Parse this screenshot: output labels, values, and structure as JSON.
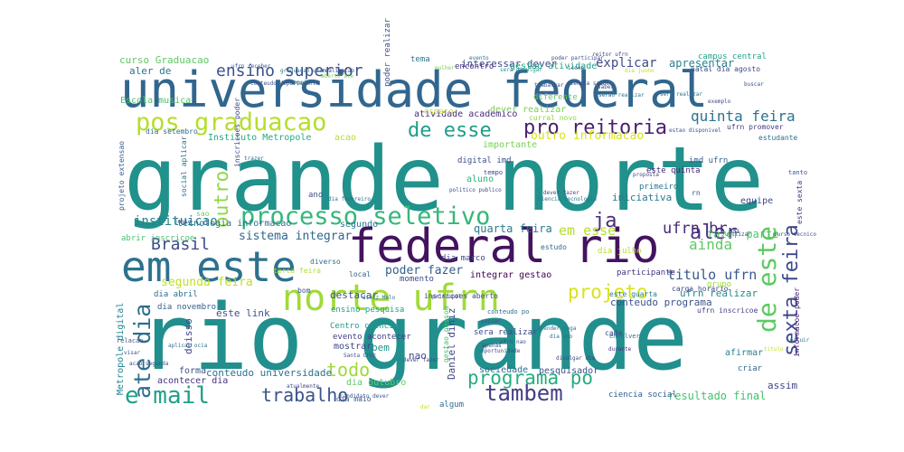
{
  "words": [
    {
      "text": "grande norte",
      "color": "#21918c"
    },
    {
      "text": "rio grande",
      "color": "#218f8d"
    },
    {
      "text": "universidade federal",
      "color": "#31668e"
    },
    {
      "text": "federal rio",
      "color": "#44135f"
    },
    {
      "text": "norte ufrn",
      "color": "#a0da39"
    },
    {
      "text": "em este",
      "color": "#2c728e"
    },
    {
      "text": "processo seletivo",
      "color": "#35b779"
    },
    {
      "text": "pos graduacao",
      "color": "#b5de2b"
    },
    {
      "text": "pro reitoria",
      "color": "#481f70"
    },
    {
      "text": "ate dia",
      "color": "#2e6e8e"
    },
    {
      "text": "e mail",
      "color": "#1fa088"
    },
    {
      "text": "trabalho",
      "color": "#3b528b"
    },
    {
      "text": "tambem",
      "color": "#433e85"
    },
    {
      "text": "programa po",
      "color": "#27ad81"
    },
    {
      "text": "sexta feira",
      "color": "#3e4989"
    },
    {
      "text": "de este",
      "color": "#5ec962"
    },
    {
      "text": "de esse",
      "color": "#1f9e89"
    },
    {
      "text": "aler",
      "color": "#46327e"
    },
    {
      "text": "ja",
      "color": "#472d7b"
    },
    {
      "text": "ensino superior",
      "color": "#3b528b"
    },
    {
      "text": "quinta feira",
      "color": "#2c728e"
    },
    {
      "text": "outro",
      "color": "#8fd744"
    },
    {
      "text": "Brasil",
      "color": "#3e4989"
    },
    {
      "text": "ainda",
      "color": "#5ec962"
    },
    {
      "text": "ufrn br",
      "color": "#482878"
    },
    {
      "text": "projeto",
      "color": "#d8e219"
    },
    {
      "text": "titulo ufrn",
      "color": "#38588c"
    },
    {
      "text": "todo",
      "color": "#a0da39"
    },
    {
      "text": "instituicao",
      "color": "#26828e"
    },
    {
      "text": "em esse",
      "color": "#b5de2b"
    },
    {
      "text": "segunda feira",
      "color": "#c2df23"
    },
    {
      "text": "poder fazer",
      "color": "#355f8d"
    },
    {
      "text": "sistema integrar",
      "color": "#31668e"
    },
    {
      "text": "quarta feira",
      "color": "#2a788e"
    },
    {
      "text": "explicar",
      "color": "#3e4a89"
    },
    {
      "text": "apresentar",
      "color": "#26818e"
    },
    {
      "text": "outro informacao",
      "color": "#d5e21a"
    },
    {
      "text": "iniciativa",
      "color": "#2a788e"
    },
    {
      "text": "fazer parte",
      "color": "#52c569"
    },
    {
      "text": "resultado final",
      "color": "#46c06f"
    },
    {
      "text": "conteudo programa",
      "color": "#3b528b"
    },
    {
      "text": "ufrn realizar",
      "color": "#23898e"
    },
    {
      "text": "curso Graduacao",
      "color": "#5ec962"
    },
    {
      "text": "aler de",
      "color": "#2c718e"
    },
    {
      "text": "Escola musica",
      "color": "#4ac16d"
    },
    {
      "text": "Instituto Metropole",
      "color": "#25ab82"
    },
    {
      "text": "atividade academico",
      "color": "#472d7b"
    },
    {
      "text": "interessar dever",
      "color": "#3e4989"
    },
    {
      "text": "gestao atividade",
      "color": "#1fa188"
    },
    {
      "text": "dever realizar",
      "color": "#7ad151"
    },
    {
      "text": "importante",
      "color": "#75d054"
    },
    {
      "text": "diferente",
      "color": "#65cb5e"
    },
    {
      "text": "digital imd",
      "color": "#3b518b"
    },
    {
      "text": "imd ufrn",
      "color": "#34618d"
    },
    {
      "text": "este quinta",
      "color": "#482475"
    },
    {
      "text": "primeiro",
      "color": "#2a788e"
    },
    {
      "text": "equipe",
      "color": "#3e4a89"
    },
    {
      "text": "segundo",
      "color": "#2a768e"
    },
    {
      "text": "tecnologia informacao",
      "color": "#2e6f8e"
    },
    {
      "text": "abrir inscricoe",
      "color": "#4ac16d"
    },
    {
      "text": "aluno",
      "color": "#2db27d"
    },
    {
      "text": "dia marco",
      "color": "#3f4788"
    },
    {
      "text": "dia julho",
      "color": "#b8de29"
    },
    {
      "text": "estudo",
      "color": "#2f6b8e"
    },
    {
      "text": "destacar",
      "color": "#3b528b"
    },
    {
      "text": "integrar gestao",
      "color": "#440154"
    },
    {
      "text": "participante",
      "color": "#46337f"
    },
    {
      "text": "grupo",
      "color": "#9bd93c"
    },
    {
      "text": "este quarta",
      "color": "#26828e"
    },
    {
      "text": "Centro ciencia",
      "color": "#1f9a8a"
    },
    {
      "text": "evento acontecer",
      "color": "#433d84"
    },
    {
      "text": "mostrar",
      "color": "#3f4889"
    },
    {
      "text": "bem",
      "color": "#20928c"
    },
    {
      "text": "nao",
      "color": "#3e4989"
    },
    {
      "text": "Daniel diniz",
      "color": "#404688"
    },
    {
      "text": "ensino pesquisa",
      "color": "#1fa088"
    },
    {
      "text": "sera realizar",
      "color": "#3f4889"
    },
    {
      "text": "cada",
      "color": "#3e4989"
    },
    {
      "text": "afirmar",
      "color": "#26828e"
    },
    {
      "text": "criar",
      "color": "#31688e"
    },
    {
      "text": "assim",
      "color": "#414487"
    },
    {
      "text": "sociedade",
      "color": "#2d708e"
    },
    {
      "text": "pesquisador",
      "color": "#3b528b"
    },
    {
      "text": "ciencia social",
      "color": "#34608d"
    },
    {
      "text": "conteudo universidade",
      "color": "#2c718e"
    },
    {
      "text": "dia outubro",
      "color": "#5ec962"
    },
    {
      "text": "dia maio",
      "color": "#38598c"
    },
    {
      "text": "algum",
      "color": "#2e6e8e"
    },
    {
      "text": "forma",
      "color": "#3b528b"
    },
    {
      "text": "acontecer dia",
      "color": "#46327e"
    },
    {
      "text": "Metropole digital",
      "color": "#25858e"
    },
    {
      "text": "deisso",
      "color": "#3f4788"
    },
    {
      "text": "este link",
      "color": "#3b528b"
    },
    {
      "text": "dia novembro",
      "color": "#355f8d"
    },
    {
      "text": "dia abril",
      "color": "#2d708e"
    },
    {
      "text": "terca feira",
      "color": "#b5de2b"
    },
    {
      "text": "inscricoes poder",
      "color": "#3e4a89"
    },
    {
      "text": "social aplicar",
      "color": "#2c718e"
    },
    {
      "text": "projeto extensao",
      "color": "#38598c"
    },
    {
      "text": "dia setembro",
      "color": "#2e6e8e"
    },
    {
      "text": "natal dia agosto",
      "color": "#3e4a89"
    },
    {
      "text": "campus central",
      "color": "#20a486"
    },
    {
      "text": "ufrn promover",
      "color": "#443a83"
    },
    {
      "text": "estudante",
      "color": "#2d708e"
    },
    {
      "text": "carga horario",
      "color": "#3e4989"
    },
    {
      "text": "ufrn inscricoe",
      "color": "#423f85"
    },
    {
      "text": "informacoe poder",
      "color": "#482475"
    },
    {
      "text": "este sexta",
      "color": "#46337f"
    },
    {
      "text": "acao",
      "color": "#b5de2b"
    },
    {
      "text": "ano",
      "color": "#3b528b"
    },
    {
      "text": "diverso",
      "color": "#2c718e"
    },
    {
      "text": "momento",
      "color": "#3e4989"
    },
    {
      "text": "poder realizar",
      "color": "#3b528b"
    },
    {
      "text": "encontro",
      "color": "#46327e"
    },
    {
      "text": "tema",
      "color": "#2a788e"
    },
    {
      "text": "espaco",
      "color": "#c2df23"
    },
    {
      "text": "curral novo",
      "color": "#8fd744"
    },
    {
      "text": "gestao pessoa",
      "color": "#46c06f"
    },
    {
      "text": "inscricoes aberto",
      "color": "#3e4989"
    },
    {
      "text": "local",
      "color": "#35608d"
    },
    {
      "text": "rn",
      "color": "#3b528b"
    },
    {
      "text": "sao",
      "color": "#75d054"
    },
    {
      "text": "bom",
      "color": "#3b528b"
    },
    {
      "text": "envolver",
      "color": "#2c718e"
    },
    {
      "text": "pai",
      "color": "#3e4989"
    },
    {
      "text": "tanto",
      "color": "#3b528b"
    },
    {
      "text": "tempo",
      "color": "#404688"
    },
    {
      "text": "dia fevereiro",
      "color": "#2d708e"
    },
    {
      "text": "politico publico",
      "color": "#3e4989"
    },
    {
      "text": "ciencia tecnologia",
      "color": "#2c718e"
    },
    {
      "text": "proposta",
      "color": "#3e4989"
    },
    {
      "text": "estao disponivel",
      "color": "#3b528b"
    },
    {
      "text": "sera divulgar",
      "color": "#1f9a8a"
    },
    {
      "text": "aberto ate",
      "color": "#7ad151"
    },
    {
      "text": "conteudo po",
      "color": "#2e6e8e"
    },
    {
      "text": "dever fazer",
      "color": "#404688"
    },
    {
      "text": "oportunidade",
      "color": "#3e4989"
    },
    {
      "text": "durante",
      "color": "#46327e"
    },
    {
      "text": "passar",
      "color": "#3b528b"
    },
    {
      "text": "diniz Melo",
      "color": "#2c718e"
    },
    {
      "text": "principal",
      "color": "#3e4989"
    },
    {
      "text": "relacao",
      "color": "#3b528b"
    },
    {
      "text": "mulher",
      "color": "#7ad151"
    },
    {
      "text": "poder participar",
      "color": "#3b528b"
    },
    {
      "text": "reitor ufrn",
      "color": "#3e4989"
    },
    {
      "text": "trabalhar",
      "color": "#3b528b"
    },
    {
      "text": "sera realizar",
      "color": "#2c718e"
    },
    {
      "text": "exemplo",
      "color": "#3e4989"
    },
    {
      "text": "buscar",
      "color": "#3b528b"
    },
    {
      "text": "trazer",
      "color": "#2e6e8e"
    },
    {
      "text": "atualmente",
      "color": "#3e4989"
    },
    {
      "text": "Santa Cruz",
      "color": "#3b528b"
    },
    {
      "text": "incluir",
      "color": "#2c718e"
    },
    {
      "text": "titulo",
      "color": "#c2df23"
    },
    {
      "text": "utilizar",
      "color": "#3e4989"
    },
    {
      "text": "curso tecnico",
      "color": "#3b528b"
    },
    {
      "text": "atender vaga",
      "color": "#2c718e"
    },
    {
      "text": "apenas",
      "color": "#3e4989"
    },
    {
      "text": "dar",
      "color": "#c2df23"
    },
    {
      "text": "candidato dever",
      "color": "#3b528b"
    },
    {
      "text": "evento",
      "color": "#2c718e"
    },
    {
      "text": "ciencia saude",
      "color": "#3e4989"
    },
    {
      "text": "dia junho",
      "color": "#c2df23"
    },
    {
      "text": "ufrn receber",
      "color": "#3b528b"
    },
    {
      "text": "graduacao ufrn",
      "color": "#2c718e"
    },
    {
      "text": "realizacao",
      "color": "#3e4989"
    },
    {
      "text": "conteudo departamento",
      "color": "#3b528b"
    },
    {
      "text": "apoio",
      "color": "#2c718e"
    },
    {
      "text": "dever fazer",
      "color": "#3e4989"
    },
    {
      "text": "ufrn nao",
      "color": "#3b528b"
    },
    {
      "text": "dia ano",
      "color": "#2c718e"
    },
    {
      "text": "divulgar dia",
      "color": "#3e4989"
    },
    {
      "text": "visar",
      "color": "#3b528b"
    },
    {
      "text": "aplicar ocia",
      "color": "#2c718e"
    },
    {
      "text": "acao segunda",
      "color": "#3e4989"
    },
    {
      "text": "junto",
      "color": "#3b528b"
    },
    {
      "text": "serao realizar",
      "color": "#2c718e"
    },
    {
      "text": "saber",
      "color": "#3e4989"
    },
    {
      "text": "icone",
      "color": "#3b528b"
    }
  ]
}
